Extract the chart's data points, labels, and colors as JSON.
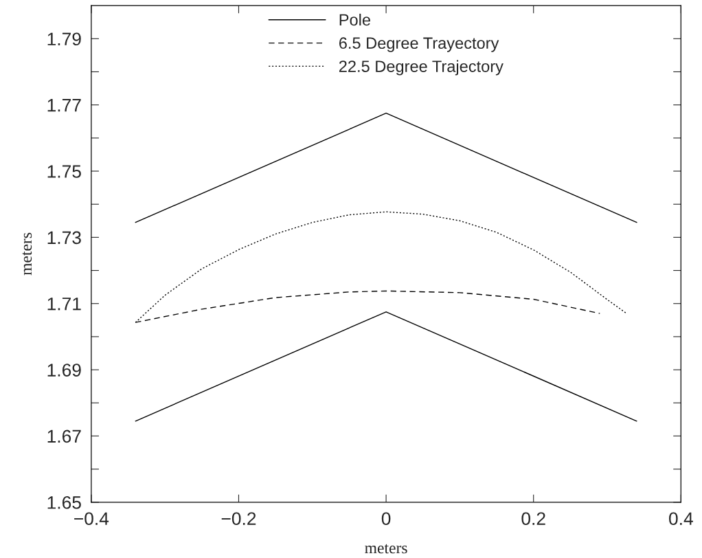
{
  "chart_data": {
    "type": "line",
    "xlabel": "meters",
    "ylabel": "meters",
    "xlim": [
      -0.4,
      0.4
    ],
    "ylim": [
      1.65,
      1.8
    ],
    "xticks": [
      {
        "value": -0.4,
        "label": "−0.4"
      },
      {
        "value": -0.2,
        "label": "−0.2"
      },
      0,
      0.2,
      0.4
    ],
    "yticks": [
      1.65,
      {
        "value": 1.66,
        "label": null
      },
      1.67,
      {
        "value": 1.68,
        "label": null
      },
      1.69,
      {
        "value": 1.7,
        "label": null
      },
      1.71,
      {
        "value": 1.72,
        "label": null
      },
      1.73,
      {
        "value": 1.74,
        "label": null
      },
      1.75,
      {
        "value": 1.76,
        "label": null
      },
      1.77,
      {
        "value": 1.78,
        "label": null
      },
      1.79
    ],
    "grid": false,
    "legend": "top",
    "marker": "none",
    "series": [
      {
        "name": "Pole",
        "color": "#000000",
        "line_style": "solid",
        "x": [
          -0.34,
          0,
          0.34
        ],
        "values": [
          1.7345,
          1.7675,
          1.7345
        ]
      },
      {
        "color": "#000000",
        "line_style": "solid",
        "x": [
          -0.34,
          0,
          0.34
        ],
        "values": [
          1.6745,
          1.7075,
          1.6745
        ]
      },
      {
        "name": "6.5 Degree Trayectory",
        "color": "#000000",
        "line_style": "dashed",
        "x": [
          -0.34,
          -0.25,
          -0.15,
          -0.05,
          0,
          0.1,
          0.2,
          0.29
        ],
        "values": [
          1.7043,
          1.7083,
          1.7118,
          1.7135,
          1.7138,
          1.7133,
          1.7113,
          1.707
        ]
      },
      {
        "name": "22.5 Degree Trajectory",
        "color": "#000000",
        "line_style": "dotted",
        "x": [
          -0.34,
          -0.3,
          -0.25,
          -0.2,
          -0.15,
          -0.1,
          -0.05,
          0,
          0.05,
          0.1,
          0.15,
          0.2,
          0.25,
          0.3,
          0.325
        ],
        "values": [
          1.7043,
          1.7125,
          1.7205,
          1.7263,
          1.731,
          1.7345,
          1.7368,
          1.7377,
          1.737,
          1.735,
          1.7315,
          1.7262,
          1.7195,
          1.7112,
          1.7072
        ]
      }
    ]
  }
}
